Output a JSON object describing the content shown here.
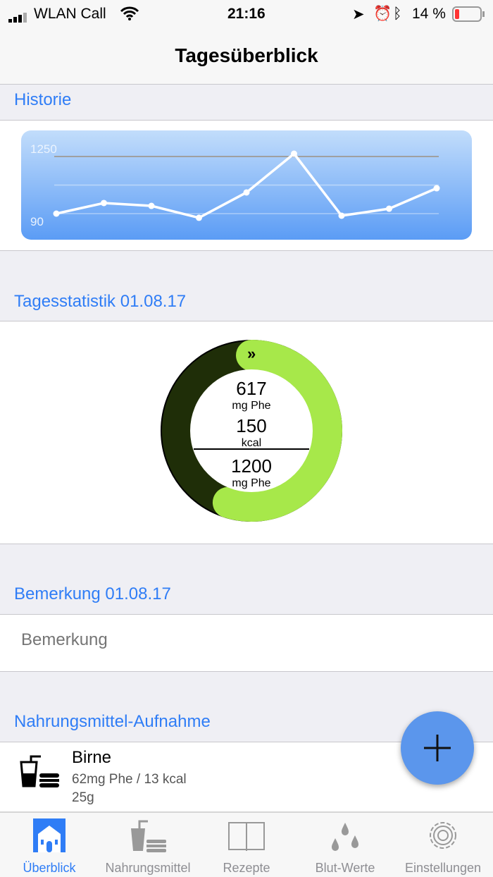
{
  "status": {
    "carrier": "WLAN Call",
    "time": "21:16",
    "battery": "14 %",
    "battery_level": 0.14
  },
  "nav": {
    "title": "Tagesüberblick"
  },
  "history": {
    "header": "Historie"
  },
  "chart_data": {
    "type": "line",
    "y_ticks": [
      "1250",
      "90"
    ],
    "ylim": [
      90,
      1250
    ],
    "values": [
      90,
      305,
      247,
      5,
      520,
      1307,
      47,
      190,
      605
    ],
    "grid": true,
    "line_color": "#ffffff"
  },
  "stats": {
    "header": "Tagesstatistik 01.08.17",
    "phe_value": "617",
    "phe_unit": "mg Phe",
    "kcal_value": "150",
    "kcal_unit": "kcal",
    "limit_value": "1200",
    "limit_unit": "mg Phe",
    "progress": 0.55,
    "colors": {
      "dark": "#1f2e08",
      "light": "#a7e84a"
    }
  },
  "remark": {
    "header": "Bemerkung 01.08.17",
    "placeholder": "Bemerkung"
  },
  "intake": {
    "header": "Nahrungsmittel-Aufnahme",
    "items": [
      {
        "name": "Birne",
        "detail": "62mg Phe / 13 kcal",
        "amount": "25g"
      }
    ]
  },
  "fab": {
    "icon": "plus-icon"
  },
  "tabs": [
    {
      "label": "Überblick",
      "icon": "house-icon",
      "active": true
    },
    {
      "label": "Nahrungsmittel",
      "icon": "food-icon"
    },
    {
      "label": "Rezepte",
      "icon": "book-icon"
    },
    {
      "label": "Blut-Werte",
      "icon": "drops-icon"
    },
    {
      "label": "Einstellungen",
      "icon": "gear-icon"
    }
  ],
  "accent": "#2f7df6"
}
